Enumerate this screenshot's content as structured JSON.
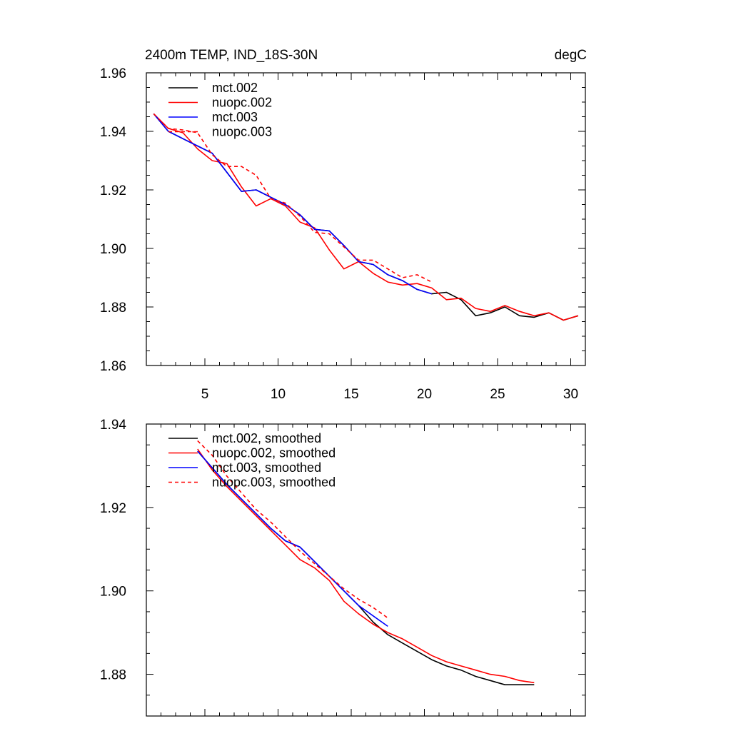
{
  "chart_data": [
    {
      "type": "line",
      "title": "2400m TEMP, IND_18S-30N",
      "units": "degC",
      "xlim": [
        1,
        31
      ],
      "ylim": [
        1.86,
        1.96
      ],
      "xticks": [
        5,
        10,
        15,
        20,
        25,
        30
      ],
      "xtick_labels": [
        "5",
        "10",
        "15",
        "20",
        "25",
        "30"
      ],
      "yticks": [
        1.86,
        1.88,
        1.9,
        1.92,
        1.94,
        1.96
      ],
      "ytick_labels": [
        "1.86",
        "1.88",
        "1.90",
        "1.92",
        "1.94",
        "1.96"
      ],
      "series": [
        {
          "name": "mct.002",
          "color": "#000000",
          "dash": "solid",
          "x": [
            1.5,
            2.5,
            3.5,
            4.5,
            5.5,
            6.5,
            7.5,
            8.5,
            9.5,
            10.5,
            11.5,
            12.5,
            13.5,
            14.5,
            15.5,
            16.5,
            17.5,
            18.5,
            19.5,
            20.5,
            21.5,
            22.5,
            23.5,
            24.5,
            25.5,
            26.5,
            27.5,
            28.5,
            29.5,
            30.5
          ],
          "y": [
            1.946,
            1.94,
            1.9375,
            1.935,
            1.9325,
            1.926,
            1.9195,
            1.92,
            1.9175,
            1.915,
            1.9115,
            1.9065,
            1.906,
            1.901,
            1.8955,
            1.8945,
            1.891,
            1.889,
            1.886,
            1.8845,
            1.885,
            1.8825,
            1.877,
            1.878,
            1.88,
            1.877,
            1.8765,
            1.878,
            1.8755,
            1.877
          ]
        },
        {
          "name": "nuopc.002",
          "color": "#ff0000",
          "dash": "solid",
          "x": [
            1.5,
            2.5,
            3.5,
            4.5,
            5.5,
            6.5,
            7.5,
            8.5,
            9.5,
            10.5,
            11.5,
            12.5,
            13.5,
            14.5,
            15.5,
            16.5,
            17.5,
            18.5,
            19.5,
            20.5,
            21.5,
            22.5,
            23.5,
            24.5,
            25.5,
            26.5,
            27.5,
            28.5,
            29.5,
            30.5
          ],
          "y": [
            1.946,
            1.941,
            1.9395,
            1.934,
            1.93,
            1.929,
            1.921,
            1.9145,
            1.917,
            1.9145,
            1.909,
            1.907,
            1.8995,
            1.893,
            1.8955,
            1.8915,
            1.8885,
            1.8875,
            1.888,
            1.8865,
            1.8825,
            1.883,
            1.8795,
            1.8785,
            1.8805,
            1.8785,
            1.877,
            1.878,
            1.8755,
            1.877
          ]
        },
        {
          "name": "mct.003",
          "color": "#0000ff",
          "dash": "solid",
          "x": [
            1.5,
            2.5,
            3.5,
            4.5,
            5.5,
            6.5,
            7.5,
            8.5,
            9.5,
            10.5,
            11.5,
            12.5,
            13.5,
            14.5,
            15.5,
            16.5,
            17.5,
            18.5,
            19.5,
            20.5
          ],
          "y": [
            1.946,
            1.94,
            1.9375,
            1.935,
            1.9325,
            1.926,
            1.9195,
            1.92,
            1.9175,
            1.915,
            1.9115,
            1.9065,
            1.906,
            1.901,
            1.8955,
            1.8945,
            1.891,
            1.889,
            1.886,
            1.8845
          ]
        },
        {
          "name": "nuopc.003",
          "color": "#ff0000",
          "dash": "dashed",
          "x": [
            1.5,
            2.5,
            3.5,
            4.5,
            5.5,
            6.5,
            7.5,
            8.5,
            9.5,
            10.5,
            11.5,
            12.5,
            13.5,
            14.5,
            15.5,
            16.5,
            17.5,
            18.5,
            19.5,
            20.5
          ],
          "y": [
            1.946,
            1.941,
            1.9405,
            1.9395,
            1.932,
            1.928,
            1.928,
            1.925,
            1.917,
            1.9155,
            1.911,
            1.9055,
            1.905,
            1.9005,
            1.896,
            1.896,
            1.893,
            1.89,
            1.891,
            1.8885
          ]
        }
      ]
    },
    {
      "type": "line",
      "xlim": [
        1,
        31
      ],
      "ylim": [
        1.87,
        1.94
      ],
      "xticks": [
        5,
        10,
        15,
        20,
        25,
        30
      ],
      "yticks": [
        1.88,
        1.9,
        1.92,
        1.94
      ],
      "ytick_labels": [
        "1.88",
        "1.90",
        "1.92",
        "1.94"
      ],
      "series": [
        {
          "name": "mct.002, smoothed",
          "color": "#000000",
          "dash": "solid",
          "x": [
            4.5,
            5.5,
            6.5,
            7.5,
            8.5,
            9.5,
            10.5,
            11.5,
            12.5,
            13.5,
            14.5,
            15.5,
            16.5,
            17.5,
            18.5,
            19.5,
            20.5,
            21.5,
            22.5,
            23.5,
            24.5,
            25.5,
            26.5,
            27.5
          ],
          "y": [
            1.9335,
            1.9295,
            1.9255,
            1.922,
            1.9185,
            1.915,
            1.912,
            1.9105,
            1.907,
            1.9035,
            1.9,
            1.8965,
            1.8925,
            1.8895,
            1.8875,
            1.8855,
            1.8835,
            1.882,
            1.881,
            1.8795,
            1.8785,
            1.8775,
            1.8775,
            1.8775
          ]
        },
        {
          "name": "nuopc.002, smoothed",
          "color": "#ff0000",
          "dash": "solid",
          "x": [
            4.5,
            5.5,
            6.5,
            7.5,
            8.5,
            9.5,
            10.5,
            11.5,
            12.5,
            13.5,
            14.5,
            15.5,
            16.5,
            17.5,
            18.5,
            19.5,
            20.5,
            21.5,
            22.5,
            23.5,
            24.5,
            25.5,
            26.5,
            27.5
          ],
          "y": [
            1.934,
            1.929,
            1.925,
            1.9215,
            1.918,
            1.9145,
            1.911,
            1.9075,
            1.9055,
            1.9025,
            1.8975,
            1.8945,
            1.892,
            1.89,
            1.8885,
            1.8865,
            1.8845,
            1.883,
            1.882,
            1.881,
            1.88,
            1.8795,
            1.8785,
            1.878
          ]
        },
        {
          "name": "mct.003, smoothed",
          "color": "#0000ff",
          "dash": "solid",
          "x": [
            4.5,
            5.5,
            6.5,
            7.5,
            8.5,
            9.5,
            10.5,
            11.5,
            12.5,
            13.5,
            14.5,
            15.5,
            16.5,
            17.5
          ],
          "y": [
            1.9335,
            1.9295,
            1.9255,
            1.922,
            1.9185,
            1.915,
            1.912,
            1.9105,
            1.907,
            1.9035,
            1.9,
            1.8965,
            1.894,
            1.8915
          ]
        },
        {
          "name": "nuopc.003, smoothed",
          "color": "#ff0000",
          "dash": "dashed",
          "x": [
            4.5,
            5.5,
            6.5,
            7.5,
            8.5,
            9.5,
            10.5,
            11.5,
            12.5,
            13.5,
            14.5,
            15.5,
            16.5,
            17.5
          ],
          "y": [
            1.936,
            1.9325,
            1.9275,
            1.9235,
            1.9195,
            1.9165,
            1.913,
            1.9095,
            1.9065,
            1.9035,
            1.9005,
            1.898,
            1.896,
            1.8935
          ]
        }
      ]
    }
  ]
}
